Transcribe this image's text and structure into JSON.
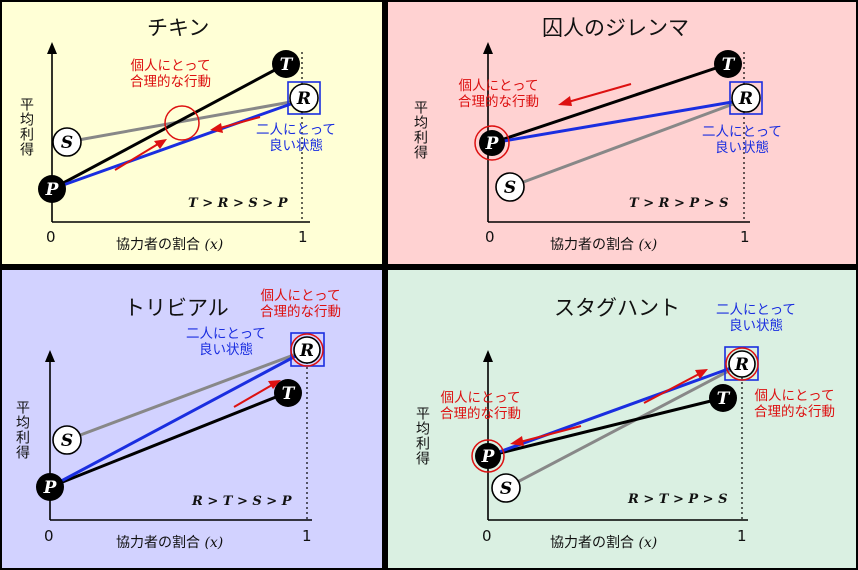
{
  "colors": {
    "chicken_bg": "#ffffd6",
    "prisoners_bg": "#ffd2d2",
    "trivial_bg": "#d2d2ff",
    "staghunt_bg": "#daf0e2",
    "rational": "#dd1111",
    "good": "#1a2ee0"
  },
  "common": {
    "ylabel": "平均利得",
    "xlabel": "協力者の割合",
    "xvar": "(x)",
    "tick0": "0",
    "tick1": "1",
    "label_T": "T",
    "label_R": "R",
    "label_S": "S",
    "label_P": "P"
  },
  "panels": {
    "chicken": {
      "title": "チキン",
      "rational_line1": "個人にとって",
      "rational_line2": "合理的な行動",
      "good_line1": "二人にとって",
      "good_line2": "良い状態",
      "inequality": "T > R > S > P"
    },
    "prisoners": {
      "title": "囚人のジレンマ",
      "rational_line1": "個人にとって",
      "rational_line2": "合理的な行動",
      "good_line1": "二人にとって",
      "good_line2": "良い状態",
      "inequality": "T > R > P > S"
    },
    "trivial": {
      "title": "トリビアル",
      "rational_line1": "個人にとって",
      "rational_line2": "合理的な行動",
      "good_line1": "二人にとって",
      "good_line2": "良い状態",
      "inequality": "R > T > S > P"
    },
    "staghunt": {
      "title": "スタグハント",
      "good_line1": "二人にとって",
      "good_line2": "良い状態",
      "rational_left_line1": "個人にとって",
      "rational_left_line2": "合理的な行動",
      "rational_right_line1": "個人にとって",
      "rational_right_line2": "合理的な行動",
      "inequality": "R > T > P > S"
    }
  }
}
